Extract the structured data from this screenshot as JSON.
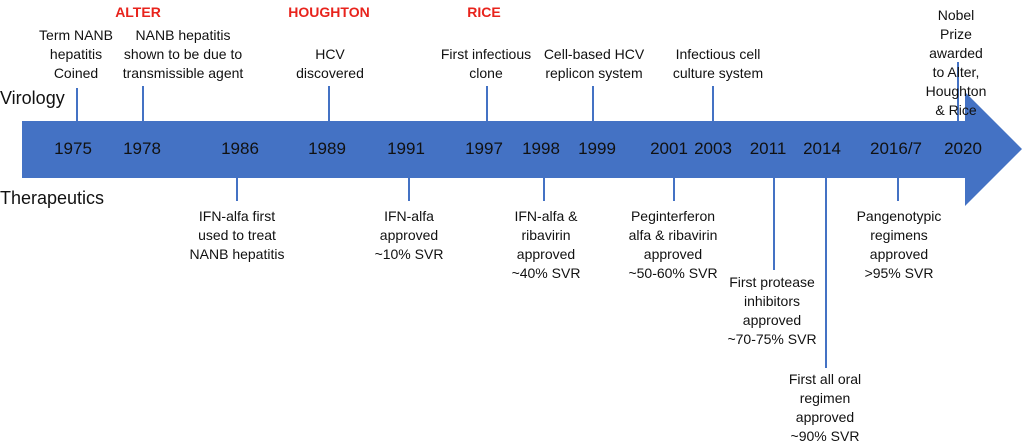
{
  "rows": {
    "virology": "Virology",
    "therapeutics": "Therapeutics"
  },
  "colors": {
    "arrow": "#4472C4",
    "highlight": "#e8231c"
  },
  "laureates": [
    "ALTER",
    "HOUGHTON",
    "RICE"
  ],
  "years": [
    "1975",
    "1978",
    "1986",
    "1989",
    "1991",
    "1997",
    "1998",
    "1999",
    "2001",
    "2003",
    "2011",
    "2014",
    "2016/7",
    "2020"
  ],
  "virology": [
    {
      "year": "1975",
      "text": "Term NANB\nhepatitis\nCoined"
    },
    {
      "year": "1978",
      "text": "NANB hepatitis\nshown to be due to\ntransmissible agent"
    },
    {
      "year": "1989",
      "text": "HCV\ndiscovered"
    },
    {
      "year": "1997",
      "text": "First infectious\nclone"
    },
    {
      "year": "1999",
      "text": "Cell-based HCV\nreplicon system"
    },
    {
      "year": "2003",
      "text": "Infectious cell\nculture system"
    },
    {
      "year": "2020",
      "text": "Nobel Prize\nawarded to Alter,\nHoughton & Rice"
    }
  ],
  "therapeutics": [
    {
      "year": "1986",
      "text": "IFN-alfa first\nused to treat\nNANB hepatitis"
    },
    {
      "year": "1991",
      "text": "IFN-alfa\napproved\n~10% SVR"
    },
    {
      "year": "1998",
      "text": "IFN-alfa &\nribavirin\napproved\n~40% SVR"
    },
    {
      "year": "2001",
      "text": "Peginterferon\nalfa & ribavirin\napproved\n~50-60% SVR"
    },
    {
      "year": "2011",
      "text": "First protease\ninhibitors\napproved\n~70-75% SVR"
    },
    {
      "year": "2014",
      "text": "First all oral\nregimen\napproved\n~90% SVR"
    },
    {
      "year": "2016/7",
      "text": "Pangenotypic\nregimens\napproved\n>95% SVR"
    }
  ]
}
